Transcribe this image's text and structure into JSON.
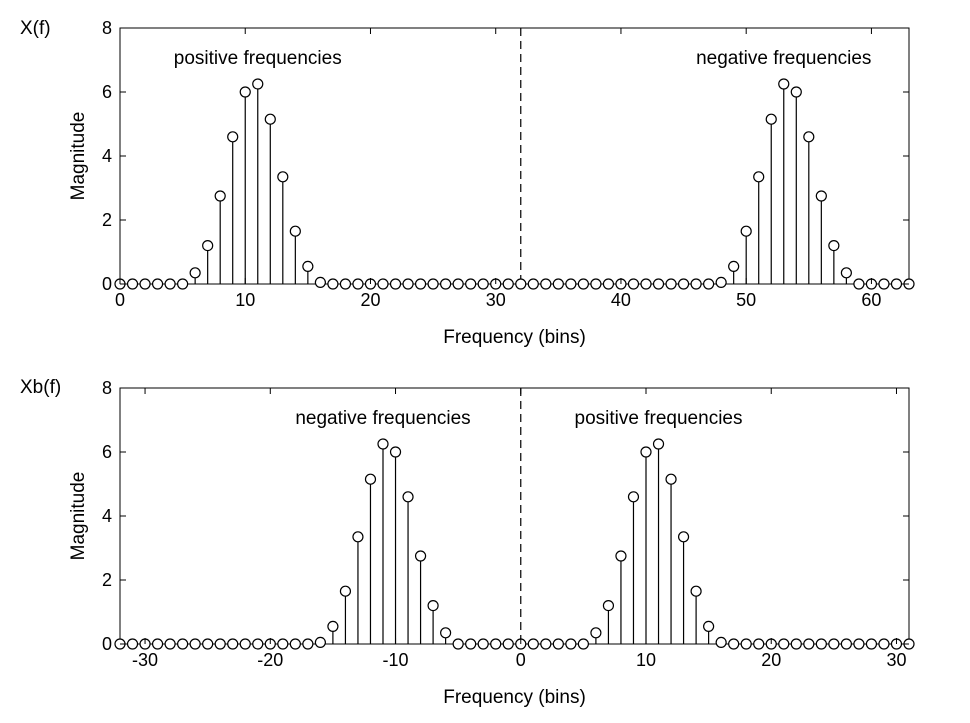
{
  "chart_data": [
    {
      "type": "stem",
      "title": "X(f)",
      "xlabel": "Frequency (bins)",
      "ylabel": "Magnitude",
      "xlim": [
        0,
        63
      ],
      "ylim": [
        0,
        8
      ],
      "xticks": [
        0,
        10,
        20,
        30,
        40,
        50,
        60
      ],
      "xtick_labels": [
        "0",
        "10",
        "20",
        "30",
        "40",
        "50",
        "60"
      ],
      "yticks": [
        0,
        2,
        4,
        6,
        8
      ],
      "ytick_labels": [
        "0",
        "2",
        "4",
        "6",
        "8"
      ],
      "grid": false,
      "divider_x": 32,
      "annotations": [
        {
          "text": "positive frequencies",
          "x": 11,
          "y": 7.1
        },
        {
          "text": "negative frequencies",
          "x": 53,
          "y": 7.1
        }
      ],
      "x": [
        0,
        1,
        2,
        3,
        4,
        5,
        6,
        7,
        8,
        9,
        10,
        11,
        12,
        13,
        14,
        15,
        16,
        17,
        18,
        19,
        20,
        21,
        22,
        23,
        24,
        25,
        26,
        27,
        28,
        29,
        30,
        31,
        32,
        33,
        34,
        35,
        36,
        37,
        38,
        39,
        40,
        41,
        42,
        43,
        44,
        45,
        46,
        47,
        48,
        49,
        50,
        51,
        52,
        53,
        54,
        55,
        56,
        57,
        58,
        59,
        60,
        61,
        62,
        63
      ],
      "values": [
        0,
        0,
        0,
        0,
        0,
        0,
        0.35,
        1.2,
        2.75,
        4.6,
        6.0,
        6.25,
        5.15,
        3.35,
        1.65,
        0.55,
        0.05,
        0,
        0,
        0,
        0,
        0,
        0,
        0,
        0,
        0,
        0,
        0,
        0,
        0,
        0,
        0,
        0,
        0,
        0,
        0,
        0,
        0,
        0,
        0,
        0,
        0,
        0,
        0,
        0,
        0,
        0,
        0,
        0.05,
        0.55,
        1.65,
        3.35,
        5.15,
        6.25,
        6.0,
        4.6,
        2.75,
        1.2,
        0.35,
        0,
        0,
        0,
        0,
        0
      ]
    },
    {
      "type": "stem",
      "title": "Xb(f)",
      "xlabel": "Frequency (bins)",
      "ylabel": "Magnitude",
      "xlim": [
        -32,
        31
      ],
      "ylim": [
        0,
        8
      ],
      "xticks": [
        -30,
        -20,
        -10,
        0,
        10,
        20,
        30
      ],
      "xtick_labels": [
        "-30",
        "-20",
        "-10",
        "0",
        "10",
        "20",
        "30"
      ],
      "yticks": [
        0,
        2,
        4,
        6,
        8
      ],
      "ytick_labels": [
        "0",
        "2",
        "4",
        "6",
        "8"
      ],
      "grid": false,
      "divider_x": 0,
      "annotations": [
        {
          "text": "negative frequencies",
          "x": -11,
          "y": 7.1
        },
        {
          "text": "positive frequencies",
          "x": 11,
          "y": 7.1
        }
      ],
      "x": [
        -32,
        -31,
        -30,
        -29,
        -28,
        -27,
        -26,
        -25,
        -24,
        -23,
        -22,
        -21,
        -20,
        -19,
        -18,
        -17,
        -16,
        -15,
        -14,
        -13,
        -12,
        -11,
        -10,
        -9,
        -8,
        -7,
        -6,
        -5,
        -4,
        -3,
        -2,
        -1,
        0,
        1,
        2,
        3,
        4,
        5,
        6,
        7,
        8,
        9,
        10,
        11,
        12,
        13,
        14,
        15,
        16,
        17,
        18,
        19,
        20,
        21,
        22,
        23,
        24,
        25,
        26,
        27,
        28,
        29,
        30,
        31
      ],
      "values": [
        0,
        0,
        0,
        0,
        0,
        0,
        0,
        0,
        0,
        0,
        0,
        0,
        0,
        0,
        0,
        0,
        0.05,
        0.55,
        1.65,
        3.35,
        5.15,
        6.25,
        6.0,
        4.6,
        2.75,
        1.2,
        0.35,
        0,
        0,
        0,
        0,
        0,
        0,
        0,
        0,
        0,
        0,
        0,
        0.35,
        1.2,
        2.75,
        4.6,
        6.0,
        6.25,
        5.15,
        3.35,
        1.65,
        0.55,
        0.05,
        0,
        0,
        0,
        0,
        0,
        0,
        0,
        0,
        0,
        0,
        0,
        0,
        0,
        0,
        0
      ]
    }
  ]
}
